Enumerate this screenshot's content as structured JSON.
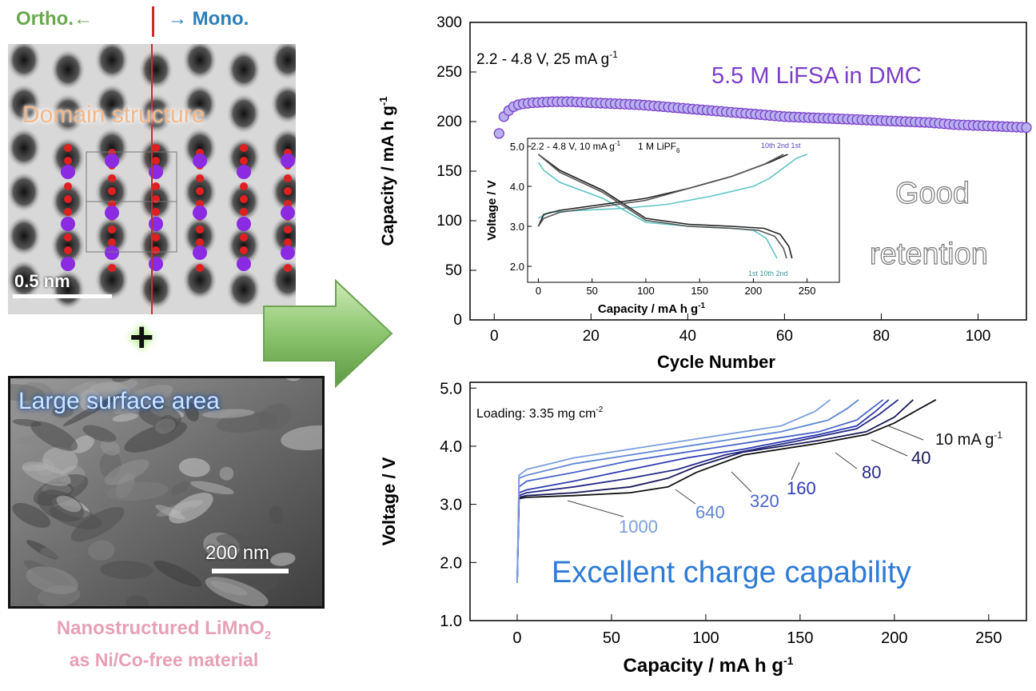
{
  "left_panel": {
    "ortho_label": "Ortho.←",
    "mono_label": "→ Mono.",
    "domain_label": "Domain structure",
    "tem_scale_label": "0.5 nm",
    "plus_symbol": "+",
    "surface_label": "Large surface area",
    "sem_scale_label": "200 nm",
    "material_line1": "Nanostructured LiMnO",
    "material_subscript": "2",
    "material_line2": "as Ni/Co-free material"
  },
  "colors": {
    "ortho": "#6aa84f",
    "mono": "#2d7fb8",
    "arrow": "#8cc56e",
    "electrolyte": "#7b3fc7",
    "retention_text": "#7a7a7a",
    "capability_text": "#2e7bd6",
    "marker": "#8f7fe0"
  },
  "chart_data": [
    {
      "type": "scatter",
      "xlabel": "Cycle Number",
      "ylabel": "Capacity / mA h g",
      "ylabel_superscript": "-1",
      "xlim": [
        -5,
        110
      ],
      "ylim": [
        0,
        300
      ],
      "xticks": [
        0,
        20,
        40,
        60,
        80,
        100
      ],
      "yticks": [
        0,
        50,
        100,
        150,
        200,
        250,
        300
      ],
      "condition": "2.2 - 4.8 V, 25 mA g",
      "condition_superscript": "-1",
      "electrolyte": "5.5 M LiFSA in DMC",
      "annotation_line1": "Good",
      "annotation_line2": "retention",
      "series": [
        {
          "x": [
            1,
            2,
            3,
            4,
            5,
            6,
            8,
            10,
            12,
            14,
            16,
            20,
            25,
            30,
            35,
            40,
            45,
            50,
            55,
            60,
            65,
            70,
            75,
            80,
            85,
            90,
            95,
            100,
            105,
            110
          ],
          "y": [
            188,
            205,
            211,
            215,
            217,
            218,
            219,
            219.5,
            220,
            220,
            220,
            219,
            218,
            217,
            215,
            213,
            211,
            209,
            207,
            205,
            204,
            203,
            202,
            201,
            200,
            199,
            197,
            196,
            195,
            194
          ]
        }
      ],
      "inset": {
        "type": "line",
        "xlabel": "Capacity / mA h g",
        "xlabel_superscript": "-1",
        "ylabel": "Voltage / V",
        "xlim": [
          -10,
          280
        ],
        "ylim": [
          1.6,
          5.2
        ],
        "xticks": [
          0,
          50,
          100,
          150,
          200,
          250
        ],
        "yticks": [
          2.0,
          3.0,
          4.0,
          5.0
        ],
        "condition": "2.2 - 4.8 V, 10 mA g",
        "condition_superscript": "-1",
        "electrolyte": "1 M LiPF",
        "electrolyte_subscript": "6",
        "label_top": "10th 2nd 1st",
        "label_bottom": "1st 10th 2nd",
        "series": [
          {
            "name": "1st",
            "x": [
              0,
              10,
              40,
              80,
              120,
              160,
              200,
              215,
              225,
              235,
              240,
              250
            ],
            "y": [
              3.2,
              3.35,
              3.4,
              3.45,
              3.55,
              3.75,
              4.0,
              4.2,
              4.4,
              4.6,
              4.7,
              4.8
            ]
          },
          {
            "name": "1st-discharge",
            "x": [
              0,
              5,
              20,
              60,
              100,
              140,
              180,
              200,
              212,
              218,
              222
            ],
            "y": [
              4.6,
              4.4,
              4.1,
              3.7,
              3.1,
              3.0,
              2.95,
              2.9,
              2.7,
              2.4,
              2.2
            ]
          },
          {
            "name": "2nd",
            "x": [
              0,
              5,
              20,
              60,
              100,
              140,
              180,
              215,
              232
            ],
            "y": [
              3.0,
              3.3,
              3.4,
              3.55,
              3.7,
              3.95,
              4.25,
              4.6,
              4.8
            ]
          },
          {
            "name": "2nd-discharge",
            "x": [
              0,
              20,
              60,
              100,
              140,
              180,
              210,
              225,
              233,
              236
            ],
            "y": [
              4.8,
              4.4,
              3.9,
              3.2,
              3.05,
              3.0,
              2.95,
              2.8,
              2.5,
              2.2
            ]
          },
          {
            "name": "10th",
            "x": [
              0,
              5,
              20,
              60,
              100,
              140,
              180,
              210,
              228
            ],
            "y": [
              3.0,
              3.2,
              3.35,
              3.5,
              3.65,
              3.95,
              4.25,
              4.55,
              4.8
            ]
          },
          {
            "name": "10th-discharge",
            "x": [
              0,
              20,
              60,
              100,
              140,
              180,
              205,
              220,
              228,
              231
            ],
            "y": [
              4.8,
              4.35,
              3.85,
              3.15,
              3.0,
              2.95,
              2.9,
              2.75,
              2.45,
              2.2
            ]
          }
        ]
      }
    },
    {
      "type": "line",
      "xlabel": "Capacity / mA h g",
      "xlabel_superscript": "-1",
      "ylabel": "Voltage / V",
      "xlim": [
        -25,
        270
      ],
      "ylim": [
        1.0,
        5.1
      ],
      "xticks": [
        0,
        50,
        100,
        150,
        200,
        250
      ],
      "yticks": [
        1.0,
        2.0,
        3.0,
        4.0,
        5.0
      ],
      "loading": "Loading: 3.35 mg cm",
      "loading_superscript": "-2",
      "annotation": "Excellent charge capability",
      "rate_unit": "mA g",
      "rate_unit_superscript": "-1",
      "series": [
        {
          "name": "10",
          "color": "#111111",
          "x": [
            0,
            1,
            5,
            30,
            60,
            80,
            95,
            120,
            160,
            185,
            200,
            212,
            222
          ],
          "y": [
            1.65,
            3.1,
            3.12,
            3.15,
            3.2,
            3.3,
            3.55,
            3.85,
            4.05,
            4.2,
            4.4,
            4.62,
            4.8
          ]
        },
        {
          "name": "40",
          "color": "#1b1b5a",
          "x": [
            0,
            1,
            5,
            30,
            60,
            80,
            95,
            120,
            160,
            185,
            200,
            210
          ],
          "y": [
            1.65,
            3.12,
            3.15,
            3.2,
            3.3,
            3.45,
            3.65,
            3.9,
            4.1,
            4.25,
            4.5,
            4.8
          ]
        },
        {
          "name": "80",
          "color": "#262b86",
          "x": [
            0,
            1,
            5,
            30,
            60,
            85,
            110,
            150,
            180,
            192,
            202
          ],
          "y": [
            1.65,
            3.15,
            3.2,
            3.3,
            3.45,
            3.6,
            3.85,
            4.1,
            4.3,
            4.55,
            4.8
          ]
        },
        {
          "name": "160",
          "color": "#2f3cb0",
          "x": [
            0,
            1,
            5,
            30,
            60,
            90,
            120,
            160,
            180,
            190,
            197
          ],
          "y": [
            1.65,
            3.2,
            3.25,
            3.4,
            3.6,
            3.8,
            3.95,
            4.2,
            4.35,
            4.6,
            4.8
          ]
        },
        {
          "name": "320",
          "color": "#4a64c8",
          "x": [
            0,
            1,
            5,
            30,
            60,
            90,
            130,
            160,
            180,
            188,
            194
          ],
          "y": [
            1.65,
            3.3,
            3.4,
            3.55,
            3.75,
            3.9,
            4.1,
            4.25,
            4.45,
            4.65,
            4.8
          ]
        },
        {
          "name": "640",
          "color": "#5f86d4",
          "x": [
            0,
            1,
            5,
            30,
            60,
            100,
            140,
            165,
            175,
            181
          ],
          "y": [
            1.65,
            3.45,
            3.5,
            3.7,
            3.85,
            4.05,
            4.25,
            4.45,
            4.65,
            4.8
          ]
        },
        {
          "name": "1000",
          "color": "#7d9fde",
          "x": [
            0,
            1,
            5,
            30,
            60,
            100,
            140,
            158,
            166
          ],
          "y": [
            1.65,
            3.5,
            3.6,
            3.8,
            3.95,
            4.15,
            4.35,
            4.6,
            4.8
          ]
        }
      ]
    }
  ]
}
